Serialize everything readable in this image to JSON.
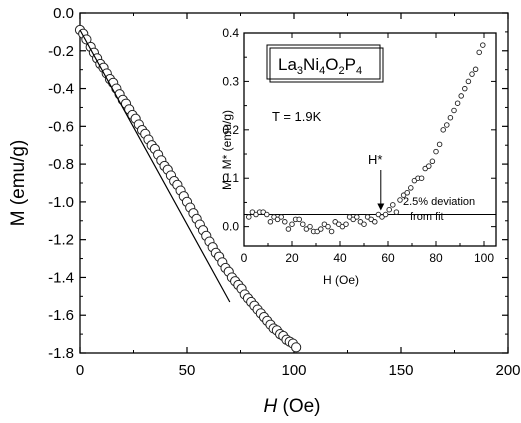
{
  "chart_data": [
    {
      "type": "scatter",
      "xlabel_italic": "H",
      "xlabel_unit": "(Oe)",
      "ylabel": "M (emu/g)",
      "xlim": [
        0,
        200
      ],
      "ylim": [
        -1.8,
        0.0
      ],
      "xticks": [
        "0",
        "50",
        "100",
        "150",
        "200"
      ],
      "yticks": [
        "0.0",
        "-0.2",
        "-0.4",
        "-0.6",
        "-0.8",
        "-1.0",
        "-1.2",
        "-1.4",
        "-1.6",
        "-1.8"
      ],
      "grid": false,
      "series": [
        {
          "marker": "open-circle",
          "x": [
            0,
            1.5,
            3,
            5,
            6.5,
            8,
            9.5,
            11,
            12.5,
            14,
            15.5,
            17,
            18.5,
            20,
            21.5,
            23,
            24.5,
            26,
            27.5,
            29,
            30.5,
            32,
            33.5,
            35,
            36.5,
            38,
            39.5,
            41,
            42.5,
            44,
            45.5,
            47,
            48.5,
            50,
            51.5,
            53,
            54.5,
            56,
            57.5,
            59,
            60.5,
            62,
            63.5,
            65,
            66.5,
            68,
            69.5,
            71,
            72.5,
            74,
            75.5,
            77,
            78.5,
            80,
            81.5,
            83,
            84.5,
            86,
            87.5,
            89,
            90.5,
            92,
            93.5,
            95,
            96.5,
            98,
            99.5,
            101
          ],
          "y": [
            -0.09,
            -0.11,
            -0.14,
            -0.18,
            -0.21,
            -0.24,
            -0.27,
            -0.29,
            -0.32,
            -0.35,
            -0.37,
            -0.4,
            -0.43,
            -0.46,
            -0.48,
            -0.51,
            -0.54,
            -0.56,
            -0.59,
            -0.62,
            -0.64,
            -0.67,
            -0.7,
            -0.72,
            -0.75,
            -0.78,
            -0.81,
            -0.83,
            -0.86,
            -0.89,
            -0.91,
            -0.94,
            -0.97,
            -1.0,
            -1.03,
            -1.06,
            -1.09,
            -1.12,
            -1.15,
            -1.18,
            -1.21,
            -1.24,
            -1.27,
            -1.29,
            -1.32,
            -1.35,
            -1.37,
            -1.4,
            -1.42,
            -1.44,
            -1.46,
            -1.49,
            -1.51,
            -1.53,
            -1.55,
            -1.57,
            -1.59,
            -1.61,
            -1.63,
            -1.65,
            -1.67,
            -1.68,
            -1.7,
            -1.71,
            -1.73,
            -1.74,
            -1.75,
            -1.77
          ]
        },
        {
          "marker": "line",
          "x": [
            0,
            70
          ],
          "y": [
            -0.09,
            -1.53
          ]
        }
      ]
    },
    {
      "type": "scatter",
      "title_parts": [
        "La",
        "3",
        "Ni",
        "4",
        "O",
        "2",
        "P",
        "4"
      ],
      "temperature_label": "T = 1.9K",
      "hstar_label": "H*",
      "hstar_x": 57,
      "deviation_label_1": "2.5% deviation",
      "deviation_label_2": "from fit",
      "deviation_level": 0.025,
      "xlabel": "H  (Oe)",
      "ylabel": "M - M* (emu/g)",
      "xlim": [
        0,
        105
      ],
      "ylim": [
        -0.04,
        0.4
      ],
      "xticks": [
        "0",
        "20",
        "40",
        "60",
        "80",
        "100"
      ],
      "yticks": [
        "0.0",
        "0.1",
        "0.2",
        "0.3",
        "0.4"
      ],
      "grid": false,
      "series": [
        {
          "marker": "open-circle",
          "x": [
            2,
            3.5,
            5,
            6.5,
            8,
            9.5,
            11,
            12.5,
            14,
            15.5,
            17,
            18.5,
            20,
            21.5,
            23,
            24.5,
            26,
            27.5,
            29,
            30.5,
            32,
            33.5,
            35,
            36.5,
            38,
            39.5,
            41,
            42.5,
            44,
            45.5,
            47,
            48.5,
            50,
            51.5,
            53,
            54.5,
            56,
            57.5,
            59,
            60.5,
            62,
            63.5,
            65,
            66.5,
            68,
            69.5,
            71,
            72.5,
            74,
            75.5,
            77,
            78.5,
            80,
            81.5,
            83,
            84.5,
            86,
            87.5,
            89,
            90.5,
            92,
            93.5,
            95,
            96.5,
            98,
            99.5
          ],
          "y": [
            0.02,
            0.03,
            0.025,
            0.03,
            0.03,
            0.025,
            0.01,
            0.02,
            0.015,
            0.02,
            0.01,
            -0.005,
            0.005,
            0.015,
            0.015,
            0.005,
            -0.005,
            0.0,
            -0.01,
            -0.01,
            -0.005,
            0.005,
            0.0,
            -0.01,
            0.01,
            0.005,
            0.0,
            0.005,
            0.02,
            0.015,
            0.02,
            0.01,
            0.005,
            0.02,
            0.015,
            0.01,
            0.025,
            0.02,
            0.025,
            0.035,
            0.045,
            0.03,
            0.055,
            0.065,
            0.07,
            0.08,
            0.095,
            0.1,
            0.1,
            0.12,
            0.125,
            0.135,
            0.155,
            0.17,
            0.2,
            0.21,
            0.225,
            0.24,
            0.255,
            0.27,
            0.285,
            0.3,
            0.315,
            0.325,
            0.36,
            0.375
          ]
        },
        {
          "marker": "line",
          "x": [
            0,
            105
          ],
          "y": [
            0.025,
            0.025
          ]
        }
      ]
    }
  ]
}
